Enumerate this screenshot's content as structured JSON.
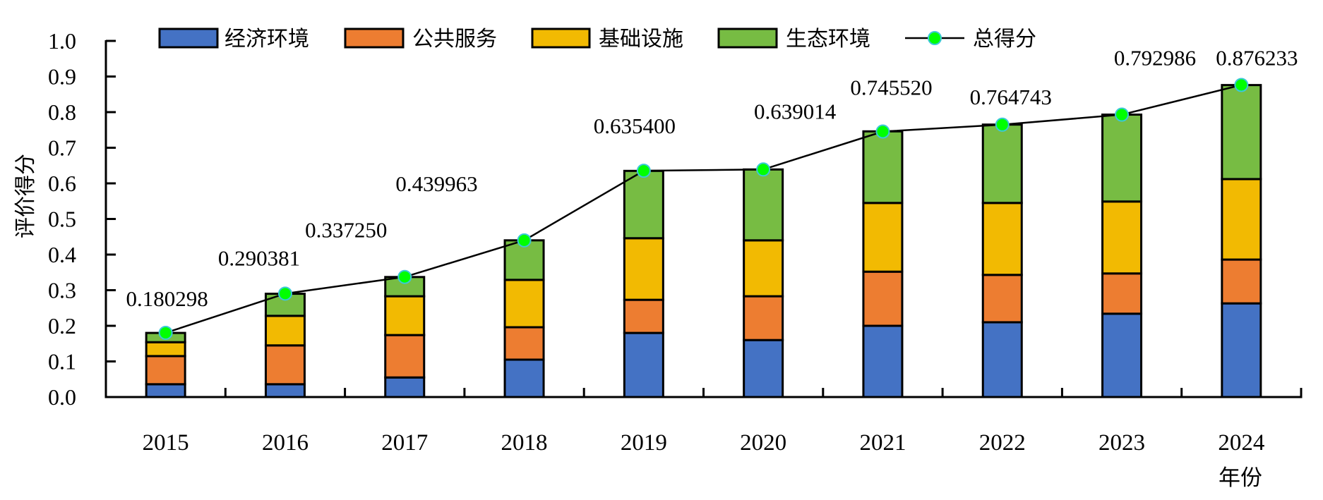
{
  "chart_data": {
    "type": "bar",
    "stacked": true,
    "title": "",
    "xlabel": "年份",
    "ylabel": "评价得分",
    "ylim": [
      0.0,
      1.0
    ],
    "yticks": [
      "0.0",
      "0.1",
      "0.2",
      "0.3",
      "0.4",
      "0.5",
      "0.6",
      "0.7",
      "0.8",
      "0.9",
      "1.0"
    ],
    "grid": false,
    "legend_position": "top",
    "categories": [
      "2015",
      "2016",
      "2017",
      "2018",
      "2019",
      "2020",
      "2021",
      "2022",
      "2023",
      "2024"
    ],
    "series": [
      {
        "name": "经济环境",
        "color": "#4472C4",
        "values": [
          0.036,
          0.036,
          0.055,
          0.105,
          0.18,
          0.16,
          0.2,
          0.21,
          0.234,
          0.263
        ]
      },
      {
        "name": "公共服务",
        "color": "#ED7D31",
        "values": [
          0.079,
          0.109,
          0.119,
          0.091,
          0.093,
          0.123,
          0.152,
          0.133,
          0.113,
          0.123
        ]
      },
      {
        "name": "基础设施",
        "color": "#F2BA02",
        "values": [
          0.039,
          0.083,
          0.109,
          0.133,
          0.173,
          0.157,
          0.193,
          0.202,
          0.202,
          0.226
        ]
      },
      {
        "name": "生态环境",
        "color": "#77BC43",
        "values": [
          0.026,
          0.062,
          0.054,
          0.111,
          0.189,
          0.199,
          0.201,
          0.22,
          0.244,
          0.264
        ]
      }
    ],
    "line_series": {
      "name": "总得分",
      "type": "line",
      "line_color": "#000000",
      "marker_color": "#00FF00",
      "marker_edge_color": "#3CC8D8",
      "values": [
        0.180298,
        0.290381,
        0.33725,
        0.439963,
        0.6354,
        0.639014,
        0.74552,
        0.764743,
        0.792986,
        0.876233
      ],
      "labels": [
        "0.180298",
        "0.290381",
        "0.337250",
        "0.439963",
        "0.635400",
        "0.639014",
        "0.745520",
        "0.764743",
        "0.792986",
        "0.876233"
      ]
    }
  }
}
